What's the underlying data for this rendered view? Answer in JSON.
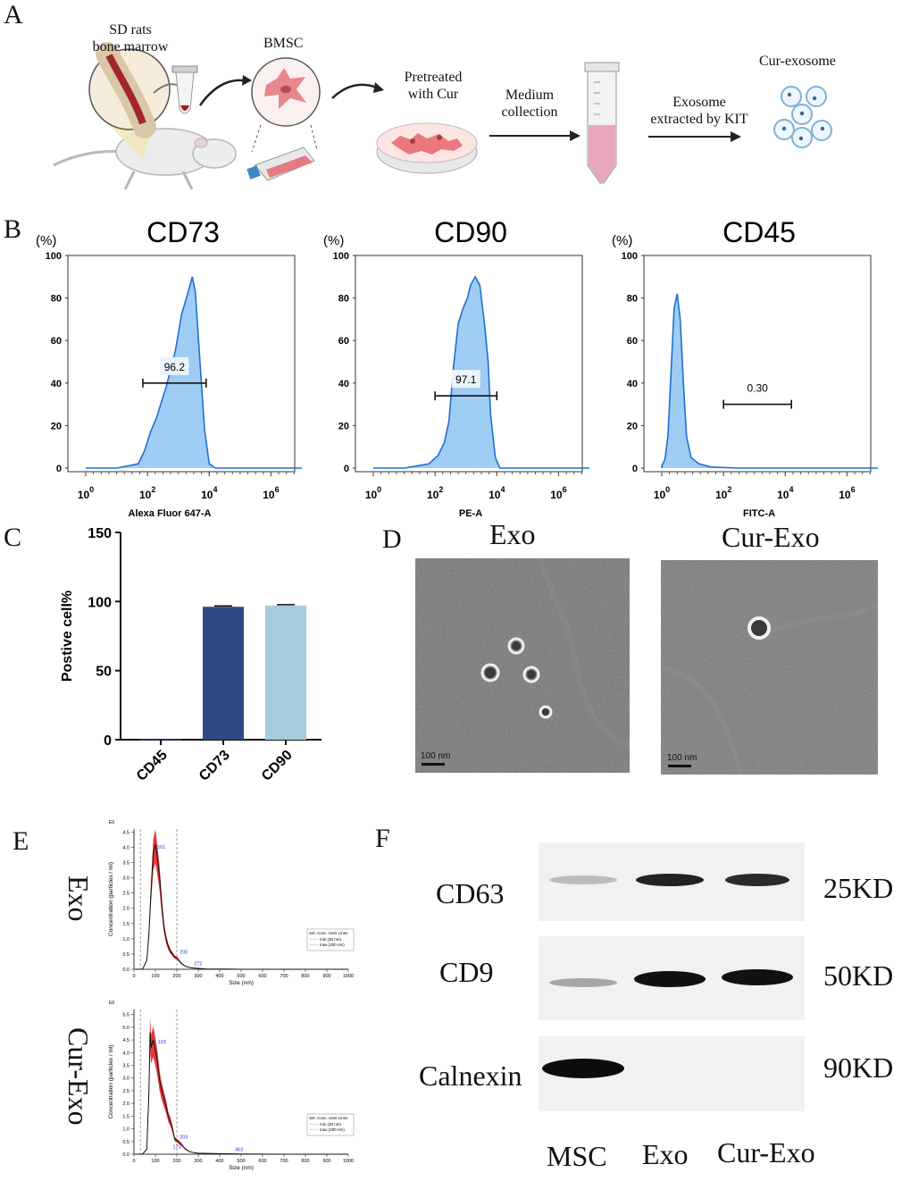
{
  "panels": {
    "a": "A",
    "b": "B",
    "c": "C",
    "d": "D",
    "e": "E",
    "f": "F"
  },
  "schematic": {
    "rats_line1": "SD rats",
    "rats_line2": "bone marrow",
    "bmsc": "BMSC",
    "pretreat_line1": "Pretreated",
    "pretreat_line2": "with Cur",
    "medium_line1": "Medium",
    "medium_line2": "collection",
    "exo_line1": "Exosome",
    "exo_line2": "extracted by KIT",
    "cur_exosome": "Cur-exosome"
  },
  "flow": {
    "pct_unit": "(%)",
    "yticks": [
      "100",
      "80",
      "60",
      "40",
      "20",
      "0"
    ],
    "xtick_base": "10",
    "xtick_exps": [
      "0",
      "2",
      "4",
      "6"
    ],
    "plots": [
      {
        "title": "CD73",
        "xlabel": "Alexa Fluor 647-A",
        "gate": "96.2"
      },
      {
        "title": "CD90",
        "xlabel": "PE-A",
        "gate": "97.1"
      },
      {
        "title": "CD45",
        "xlabel": "FITC-A",
        "gate": "0.30"
      }
    ]
  },
  "chart_data": [
    {
      "type": "bar",
      "panel": "C",
      "categories": [
        "CD45",
        "CD73",
        "CD90"
      ],
      "values": [
        0.3,
        96.2,
        97.1
      ],
      "ylabel": "Postive cell%",
      "ylim": [
        0,
        150
      ],
      "yticks": [
        "0",
        "50",
        "100",
        "150"
      ],
      "colors": [
        "#2e4a83",
        "#2e4a83",
        "#a3cddd"
      ]
    },
    {
      "type": "line",
      "panel": "E",
      "subplots": [
        {
          "name": "Exo",
          "ylabel": "Concentration (particles / ml)",
          "xlabel": "Size (nm)",
          "yunit": "E6",
          "yticks": [
            "0.0",
            "0.5",
            "1.0",
            "1.5",
            "2.0",
            "2.5",
            "3.0",
            "3.5",
            "4.0",
            "4.5"
          ],
          "xticks": [
            "0",
            "100",
            "200",
            "300",
            "400",
            "500",
            "600",
            "700",
            "800",
            "900",
            "1000"
          ],
          "ylim": [
            0,
            4.6
          ],
          "xlim": [
            0,
            1000
          ],
          "x": [
            0,
            40,
            60,
            70,
            80,
            90,
            100,
            110,
            120,
            130,
            140,
            150,
            160,
            170,
            180,
            190,
            200,
            220,
            240,
            260,
            280,
            300,
            340,
            400,
            500,
            700,
            1000
          ],
          "y": [
            0,
            0,
            0.3,
            1.2,
            2.6,
            3.8,
            4.1,
            3.6,
            3.0,
            2.1,
            1.4,
            1.0,
            0.75,
            0.6,
            0.5,
            0.4,
            0.38,
            0.2,
            0.1,
            0.06,
            0.04,
            0.03,
            0.01,
            0.01,
            0,
            0,
            0
          ],
          "peak_labels": [
            "101",
            "200",
            "272"
          ],
          "legend_title": "Sel. Conc. User Lines",
          "legend_items": [
            "min (30 nm)",
            "max (200 nm)"
          ]
        },
        {
          "name": "Cur-Exo",
          "ylabel": "Concentration (particles / ml)",
          "xlabel": "Size (nm)",
          "yunit": "E6",
          "yticks": [
            "0.0",
            "0.5",
            "1.0",
            "1.5",
            "2.0",
            "2.5",
            "3.0",
            "3.5",
            "4.0",
            "4.5",
            "5.0",
            "5.5"
          ],
          "xticks": [
            "0",
            "100",
            "200",
            "300",
            "400",
            "500",
            "600",
            "700",
            "800",
            "900",
            "1000"
          ],
          "ylim": [
            0,
            5.7
          ],
          "xlim": [
            0,
            1000
          ],
          "x": [
            0,
            40,
            60,
            70,
            75,
            80,
            90,
            100,
            110,
            120,
            130,
            140,
            150,
            160,
            170,
            180,
            190,
            200,
            220,
            240,
            260,
            280,
            300,
            400,
            500,
            700,
            1000
          ],
          "y": [
            0,
            0,
            0.2,
            2.5,
            4.8,
            4.2,
            4.5,
            4.1,
            3.6,
            2.9,
            2.5,
            2.2,
            1.9,
            1.5,
            1.3,
            1.0,
            0.6,
            0.55,
            0.4,
            0.2,
            0.1,
            0.06,
            0.04,
            0.02,
            0.01,
            0,
            0
          ],
          "peak_labels": [
            "103",
            "203",
            "173",
            "463"
          ],
          "legend_title": "Sel. Conc. User Lines",
          "legend_items": [
            "min (30 nm)",
            "max (200 nm)"
          ]
        }
      ]
    }
  ],
  "tem": {
    "exo_title": "Exo",
    "curexo_title": "Cur-Exo",
    "scalebar": "100 nm"
  },
  "western": {
    "rows": [
      {
        "protein": "CD63",
        "size": "25KD"
      },
      {
        "protein": "CD9",
        "size": "50KD"
      },
      {
        "protein": "Calnexin",
        "size": "90KD"
      }
    ],
    "lanes": [
      "MSC",
      "Exo",
      "Cur-Exo"
    ]
  },
  "nta_side_labels": [
    "Exo",
    "Cur-Exo"
  ]
}
